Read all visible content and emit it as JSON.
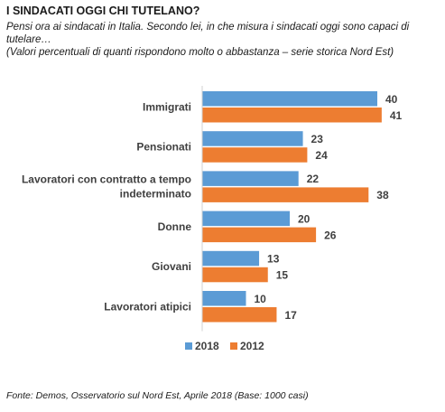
{
  "header": {
    "title": "I SINDACATI OGGI CHI TUTELANO?",
    "subtitle": "Pensi ora ai sindacati in Italia. Secondo lei, in che misura i sindacati oggi sono capaci di tutelare…",
    "note": "(Valori percentuali di quanti rispondono molto o abbastanza – serie storica Nord Est)"
  },
  "footer": {
    "source": "Fonte: Demos, Osservatorio sul Nord Est, Aprile  2018 (Base: 1000 casi)"
  },
  "colors": {
    "series_2018": "#5B9BD5",
    "series_2012": "#ED7D31",
    "label_text": "#404040"
  },
  "chart_data": {
    "type": "bar",
    "orientation": "horizontal",
    "categories": [
      [
        "Immigrati"
      ],
      [
        "Pensionati"
      ],
      [
        "Lavoratori con contratto a tempo",
        "indeterminato"
      ],
      [
        "Donne"
      ],
      [
        "Giovani"
      ],
      [
        "Lavoratori atipici"
      ]
    ],
    "series": [
      {
        "name": "2018",
        "values": [
          40,
          23,
          22,
          20,
          13,
          10
        ]
      },
      {
        "name": "2012",
        "values": [
          41,
          24,
          38,
          26,
          15,
          17
        ]
      }
    ],
    "xlim": [
      0,
      50
    ],
    "grid": false,
    "data_labels": true,
    "legend_position": "bottom"
  }
}
